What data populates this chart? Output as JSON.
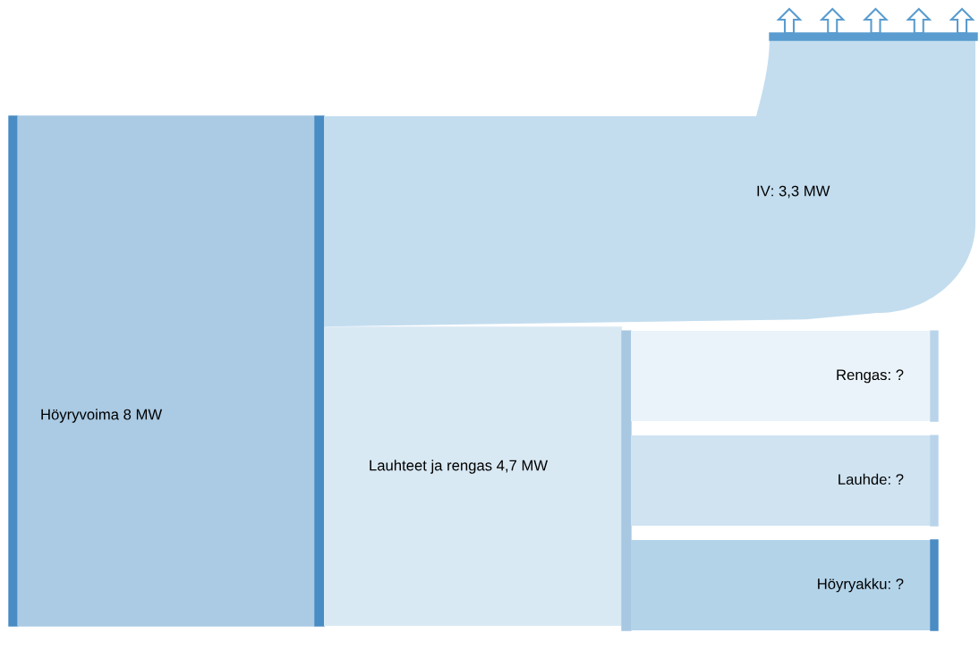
{
  "chart_data": {
    "type": "other",
    "categories": [
      "Höyryvoima",
      "IV",
      "Lauhteet ja rengas"
    ],
    "values": [
      8,
      3.3,
      4.7
    ],
    "value_labels": [
      "8 MW",
      ": 3,3 MW",
      "4,7 MW"
    ],
    "colors": [
      "#abcbe4",
      "#c3ddef",
      "#d9e9f4"
    ],
    "annotations": [
      "Rengas: ?",
      "Lauhde: ?",
      "Höyryakku: ?"
    ]
  }
}
